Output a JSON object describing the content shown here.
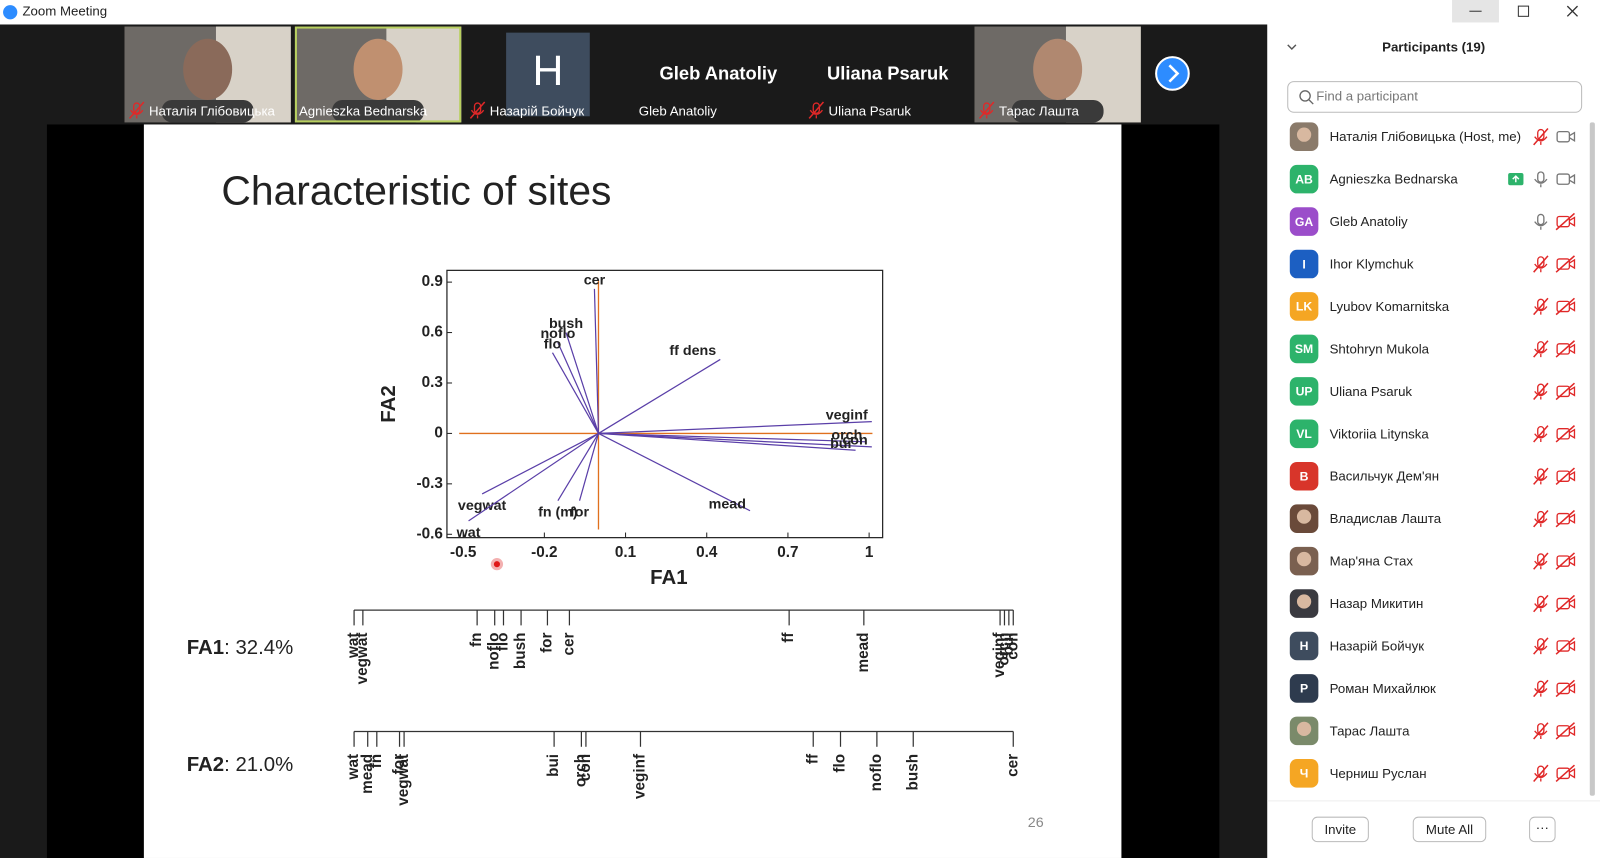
{
  "window": {
    "title": "Zoom Meeting"
  },
  "video_strip": [
    {
      "name": "Наталія Глібовицька",
      "muted": true,
      "kind": "photo",
      "tone": "#8a6a5a"
    },
    {
      "name": "Agnieszka Bednarska",
      "muted": false,
      "kind": "photo",
      "tone": "#c09070",
      "active": true
    },
    {
      "name": "Назарій Бойчук",
      "muted": true,
      "kind": "initial",
      "initial": "H"
    },
    {
      "name": "Gleb Anatoliy",
      "muted": false,
      "kind": "name",
      "display": "Gleb Anatoliy"
    },
    {
      "name": "Uliana Psaruk",
      "muted": true,
      "kind": "name",
      "display": "Uliana Psaruk"
    },
    {
      "name": "Тарас Лашта",
      "muted": true,
      "kind": "photo",
      "tone": "#b08870"
    }
  ],
  "slide": {
    "title": "Characteristic of sites",
    "page": "26",
    "chart": {
      "type": "biplot",
      "xlabel": "FA1",
      "ylabel": "FA2",
      "xlim": [
        -0.56,
        1.05
      ],
      "ylim": [
        -0.62,
        0.97
      ],
      "xticks": [
        -0.5,
        -0.2,
        0.1,
        0.4,
        0.7,
        1
      ],
      "yticks": [
        0.9,
        0.6,
        0.3,
        0,
        -0.3,
        -0.6
      ],
      "line_color": "#5a3fa8",
      "axis_color": "#e0701e",
      "vectors": [
        {
          "label": "cer",
          "x": -0.015,
          "y": 0.86
        },
        {
          "label": "bush",
          "x": -0.12,
          "y": 0.6
        },
        {
          "label": "noflo",
          "x": -0.15,
          "y": 0.54
        },
        {
          "label": "flo",
          "x": -0.17,
          "y": 0.48
        },
        {
          "label": "ff dens",
          "x": 0.45,
          "y": 0.44
        },
        {
          "label": "veginf",
          "x": 1.01,
          "y": 0.07
        },
        {
          "label": "orch",
          "x": 0.99,
          "y": -0.05
        },
        {
          "label": "con",
          "x": 1.01,
          "y": -0.08
        },
        {
          "label": "bui",
          "x": 0.95,
          "y": -0.1
        },
        {
          "label": "mead",
          "x": 0.56,
          "y": -0.46
        },
        {
          "label": "for",
          "x": -0.07,
          "y": -0.4
        },
        {
          "label": "fn (m)",
          "x": -0.15,
          "y": -0.4
        },
        {
          "label": "vegwat",
          "x": -0.43,
          "y": -0.36
        },
        {
          "label": "wat",
          "x": -0.48,
          "y": -0.52
        }
      ]
    },
    "strips": [
      {
        "label": "FA1",
        "variance": ": 32.4%",
        "lim": [
          -0.5,
          1.0
        ],
        "items": [
          {
            "label": "wat",
            "value": -0.5
          },
          {
            "label": "vegwat",
            "value": -0.48
          },
          {
            "label": "fn",
            "value": -0.22
          },
          {
            "label": "noflo",
            "value": -0.18
          },
          {
            "label": "flo",
            "value": -0.16
          },
          {
            "label": "bush",
            "value": -0.12
          },
          {
            "label": "for",
            "value": -0.06
          },
          {
            "label": "cer",
            "value": -0.01
          },
          {
            "label": "ff",
            "value": 0.49
          },
          {
            "label": "mead",
            "value": 0.66
          },
          {
            "label": "veginf",
            "value": 0.97
          },
          {
            "label": "orch",
            "value": 0.98
          },
          {
            "label": "bui",
            "value": 0.99
          },
          {
            "label": "con",
            "value": 1.0
          }
        ]
      },
      {
        "label": "FA2",
        "variance": ": 21.0%",
        "lim": [
          -0.55,
          0.9
        ],
        "items": [
          {
            "label": "wat",
            "value": -0.55
          },
          {
            "label": "mead",
            "value": -0.52
          },
          {
            "label": "fn",
            "value": -0.5
          },
          {
            "label": "for",
            "value": -0.45
          },
          {
            "label": "vegwat",
            "value": -0.44
          },
          {
            "label": "bui",
            "value": -0.11
          },
          {
            "label": "orch",
            "value": -0.05
          },
          {
            "label": "con",
            "value": -0.04
          },
          {
            "label": "veginf",
            "value": 0.08
          },
          {
            "label": "ff",
            "value": 0.46
          },
          {
            "label": "flo",
            "value": 0.52
          },
          {
            "label": "noflo",
            "value": 0.6
          },
          {
            "label": "bush",
            "value": 0.68
          },
          {
            "label": "cer",
            "value": 0.9
          }
        ]
      }
    ]
  },
  "panel": {
    "title": "Participants (19)",
    "search_placeholder": "Find a participant",
    "participants": [
      {
        "name": "Наталія Глібовицька (Host, me)",
        "photo": true,
        "color": "#8a7a6a",
        "mic": "muted",
        "video": "on"
      },
      {
        "name": "Agnieszka Bednarska",
        "initials": "AB",
        "color": "#2db36b",
        "mic": "on",
        "video": "on",
        "sharing": true
      },
      {
        "name": "Gleb Anatoliy",
        "initials": "GA",
        "color": "#9b4dca",
        "mic": "on",
        "video": "off"
      },
      {
        "name": "Ihor Klymchuk",
        "initials": "I",
        "color": "#1c5fc2",
        "mic": "muted",
        "video": "off"
      },
      {
        "name": "Lyubov Komarnitska",
        "initials": "LK",
        "color": "#f5a623",
        "mic": "muted",
        "video": "off"
      },
      {
        "name": "Shtohryn Mukola",
        "initials": "SM",
        "color": "#2db36b",
        "mic": "muted",
        "video": "off"
      },
      {
        "name": "Uliana Psaruk",
        "initials": "UP",
        "color": "#2db36b",
        "mic": "muted",
        "video": "off"
      },
      {
        "name": "Viktoriia Litynska",
        "initials": "VL",
        "color": "#2db36b",
        "mic": "muted",
        "video": "off"
      },
      {
        "name": "Васильчук Дем'ян",
        "initials": "В",
        "color": "#d8352a",
        "mic": "muted",
        "video": "off"
      },
      {
        "name": "Владислав Лашта",
        "photo": true,
        "color": "#6a4a3a",
        "mic": "muted",
        "video": "off"
      },
      {
        "name": "Мар'яна Стах",
        "photo": true,
        "color": "#7a6050",
        "mic": "muted",
        "video": "off"
      },
      {
        "name": "Назар Микитин",
        "photo": true,
        "color": "#3a3a40",
        "mic": "muted",
        "video": "off"
      },
      {
        "name": "Назарій Бойчук",
        "initials": "Н",
        "color": "#3e4c5e",
        "mic": "muted",
        "video": "off"
      },
      {
        "name": "Роман Михайлюк",
        "initials": "Р",
        "color": "#2e3b4e",
        "mic": "muted",
        "video": "off"
      },
      {
        "name": "Тарас Лашта",
        "photo": true,
        "color": "#7a8a6a",
        "mic": "muted",
        "video": "off"
      },
      {
        "name": "Черниш Руслан",
        "initials": "Ч",
        "color": "#f5a623",
        "mic": "muted",
        "video": "off"
      }
    ],
    "buttons": [
      "Invite",
      "Mute All"
    ],
    "more": "···"
  }
}
